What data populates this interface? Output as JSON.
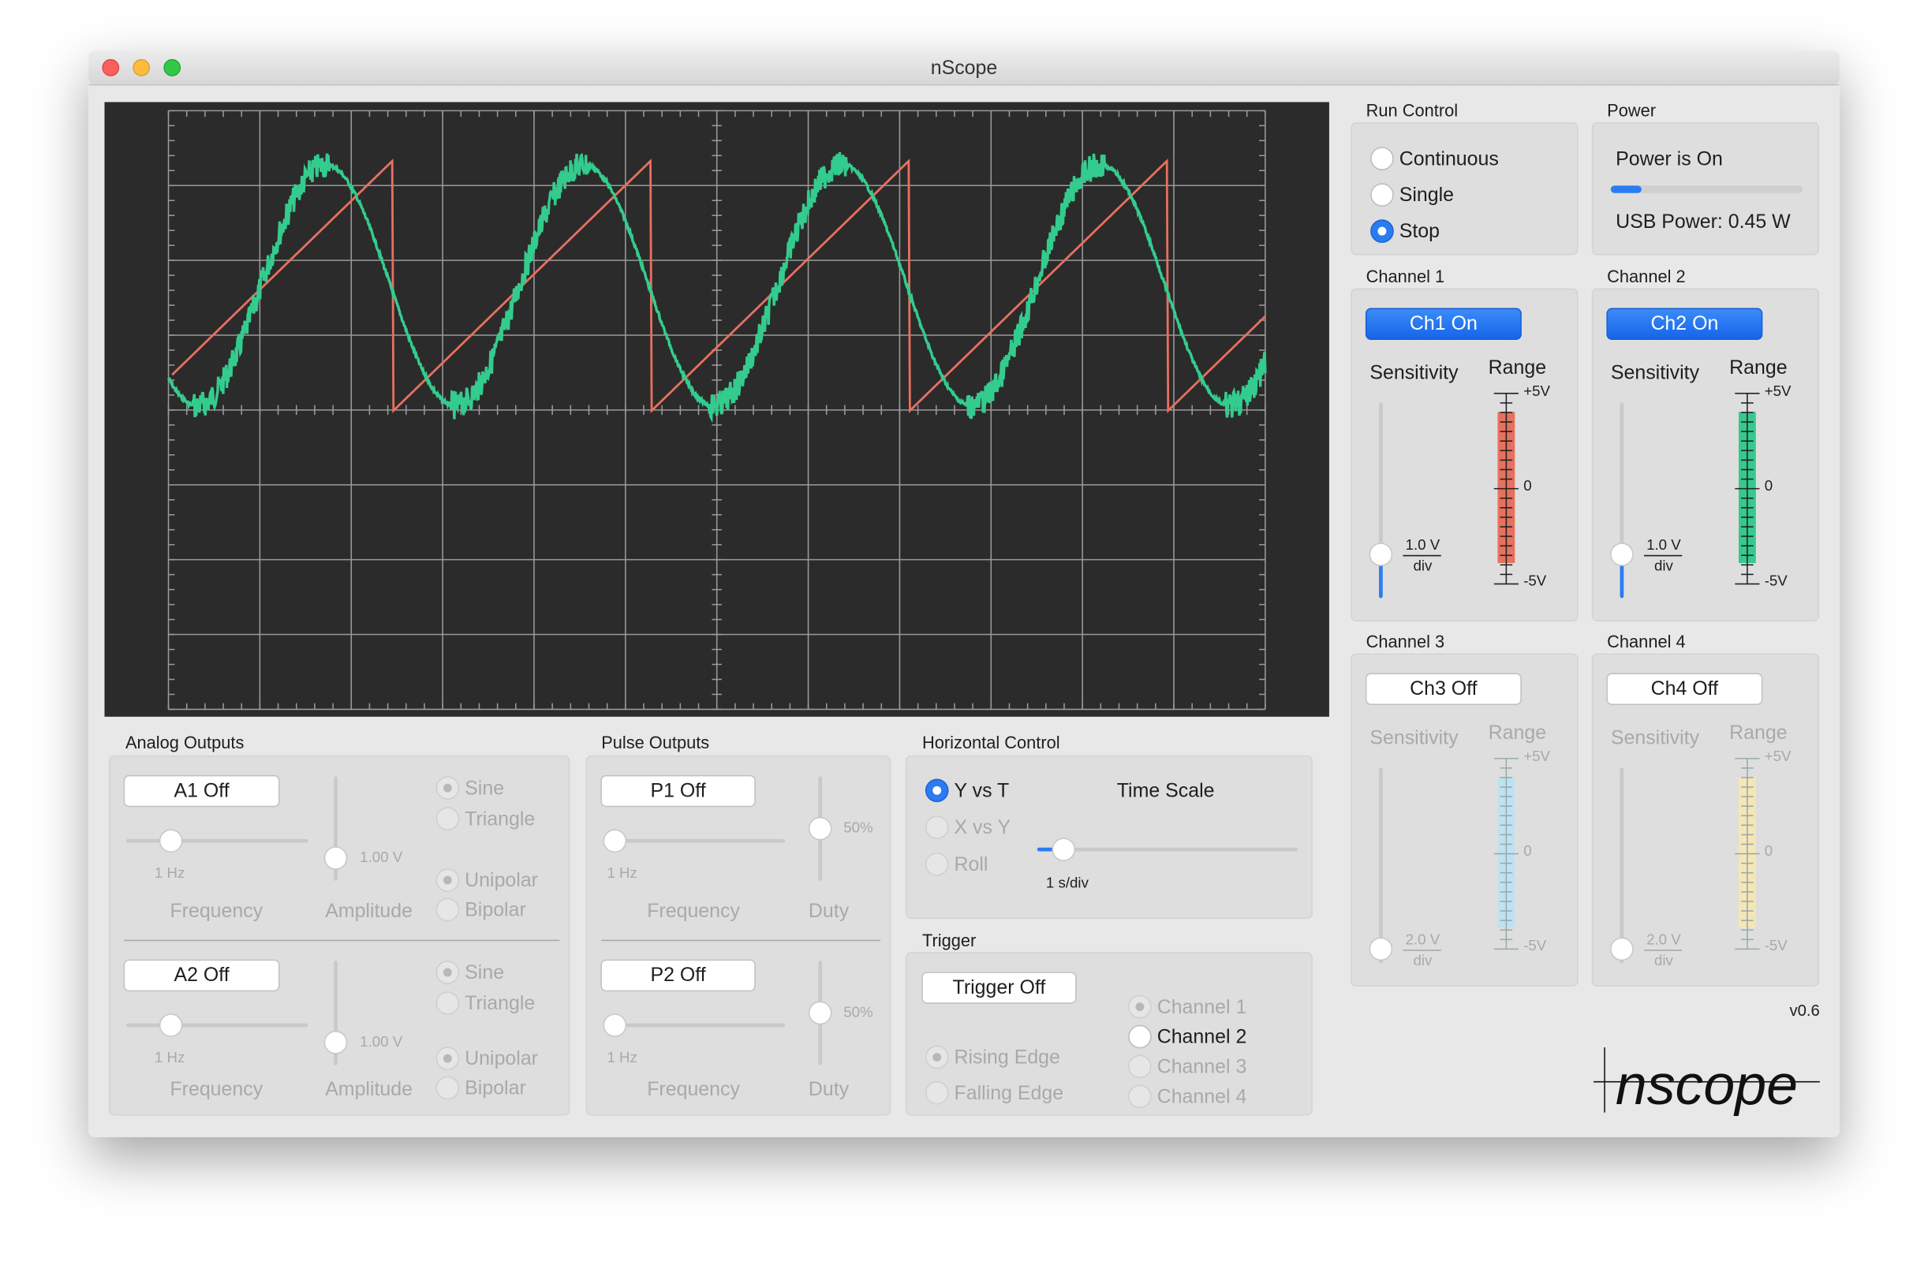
{
  "window": {
    "title": "nScope",
    "version": "v0.6",
    "logo": "nscope"
  },
  "run_control": {
    "label": "Run Control",
    "options": [
      "Continuous",
      "Single",
      "Stop"
    ],
    "selected": 2
  },
  "power": {
    "label": "Power",
    "status": "Power is On",
    "usb": "USB Power: 0.45 W"
  },
  "channels": [
    {
      "label": "Channel 1",
      "button": "Ch1 On",
      "on": true,
      "sensitivity": "Sensitivity",
      "range": "Range",
      "scale": "1.0 V",
      "unit": "div",
      "range_labels": [
        "+5V",
        "0",
        "-5V"
      ],
      "color": "#e8705e"
    },
    {
      "label": "Channel 2",
      "button": "Ch2 On",
      "on": true,
      "sensitivity": "Sensitivity",
      "range": "Range",
      "scale": "1.0 V",
      "unit": "div",
      "range_labels": [
        "+5V",
        "0",
        "-5V"
      ],
      "color": "#36c98f"
    },
    {
      "label": "Channel 3",
      "button": "Ch3 Off",
      "on": false,
      "sensitivity": "Sensitivity",
      "range": "Range",
      "scale": "2.0 V",
      "unit": "div",
      "range_labels": [
        "+5V",
        "0",
        "-5V"
      ],
      "color": "#bfe2f3"
    },
    {
      "label": "Channel 4",
      "button": "Ch4 Off",
      "on": false,
      "sensitivity": "Sensitivity",
      "range": "Range",
      "scale": "2.0 V",
      "unit": "div",
      "range_labels": [
        "+5V",
        "0",
        "-5V"
      ],
      "color": "#f5e6b5"
    }
  ],
  "analog_outputs": {
    "label": "Analog Outputs",
    "outputs": [
      {
        "button": "A1 Off",
        "frequency": "1 Hz",
        "amplitude": "1.00 V",
        "frequency_label": "Frequency",
        "amplitude_label": "Amplitude",
        "waves": [
          "Sine",
          "Triangle"
        ],
        "polarity": [
          "Unipolar",
          "Bipolar"
        ]
      },
      {
        "button": "A2 Off",
        "frequency": "1 Hz",
        "amplitude": "1.00 V",
        "frequency_label": "Frequency",
        "amplitude_label": "Amplitude",
        "waves": [
          "Sine",
          "Triangle"
        ],
        "polarity": [
          "Unipolar",
          "Bipolar"
        ]
      }
    ]
  },
  "pulse_outputs": {
    "label": "Pulse Outputs",
    "outputs": [
      {
        "button": "P1 Off",
        "frequency": "1 Hz",
        "duty": "50%",
        "frequency_label": "Frequency",
        "duty_label": "Duty"
      },
      {
        "button": "P2 Off",
        "frequency": "1 Hz",
        "duty": "50%",
        "frequency_label": "Frequency",
        "duty_label": "Duty"
      }
    ]
  },
  "horizontal_control": {
    "label": "Horizontal Control",
    "modes": [
      "Y vs T",
      "X vs Y",
      "Roll"
    ],
    "selected": 0,
    "time_scale_label": "Time Scale",
    "time_scale": "1 s/div"
  },
  "trigger": {
    "label": "Trigger",
    "button": "Trigger Off",
    "edges": [
      "Rising Edge",
      "Falling Edge"
    ],
    "channels": [
      "Channel 1",
      "Channel 2",
      "Channel 3",
      "Channel 4"
    ],
    "selected_channel": 1
  }
}
